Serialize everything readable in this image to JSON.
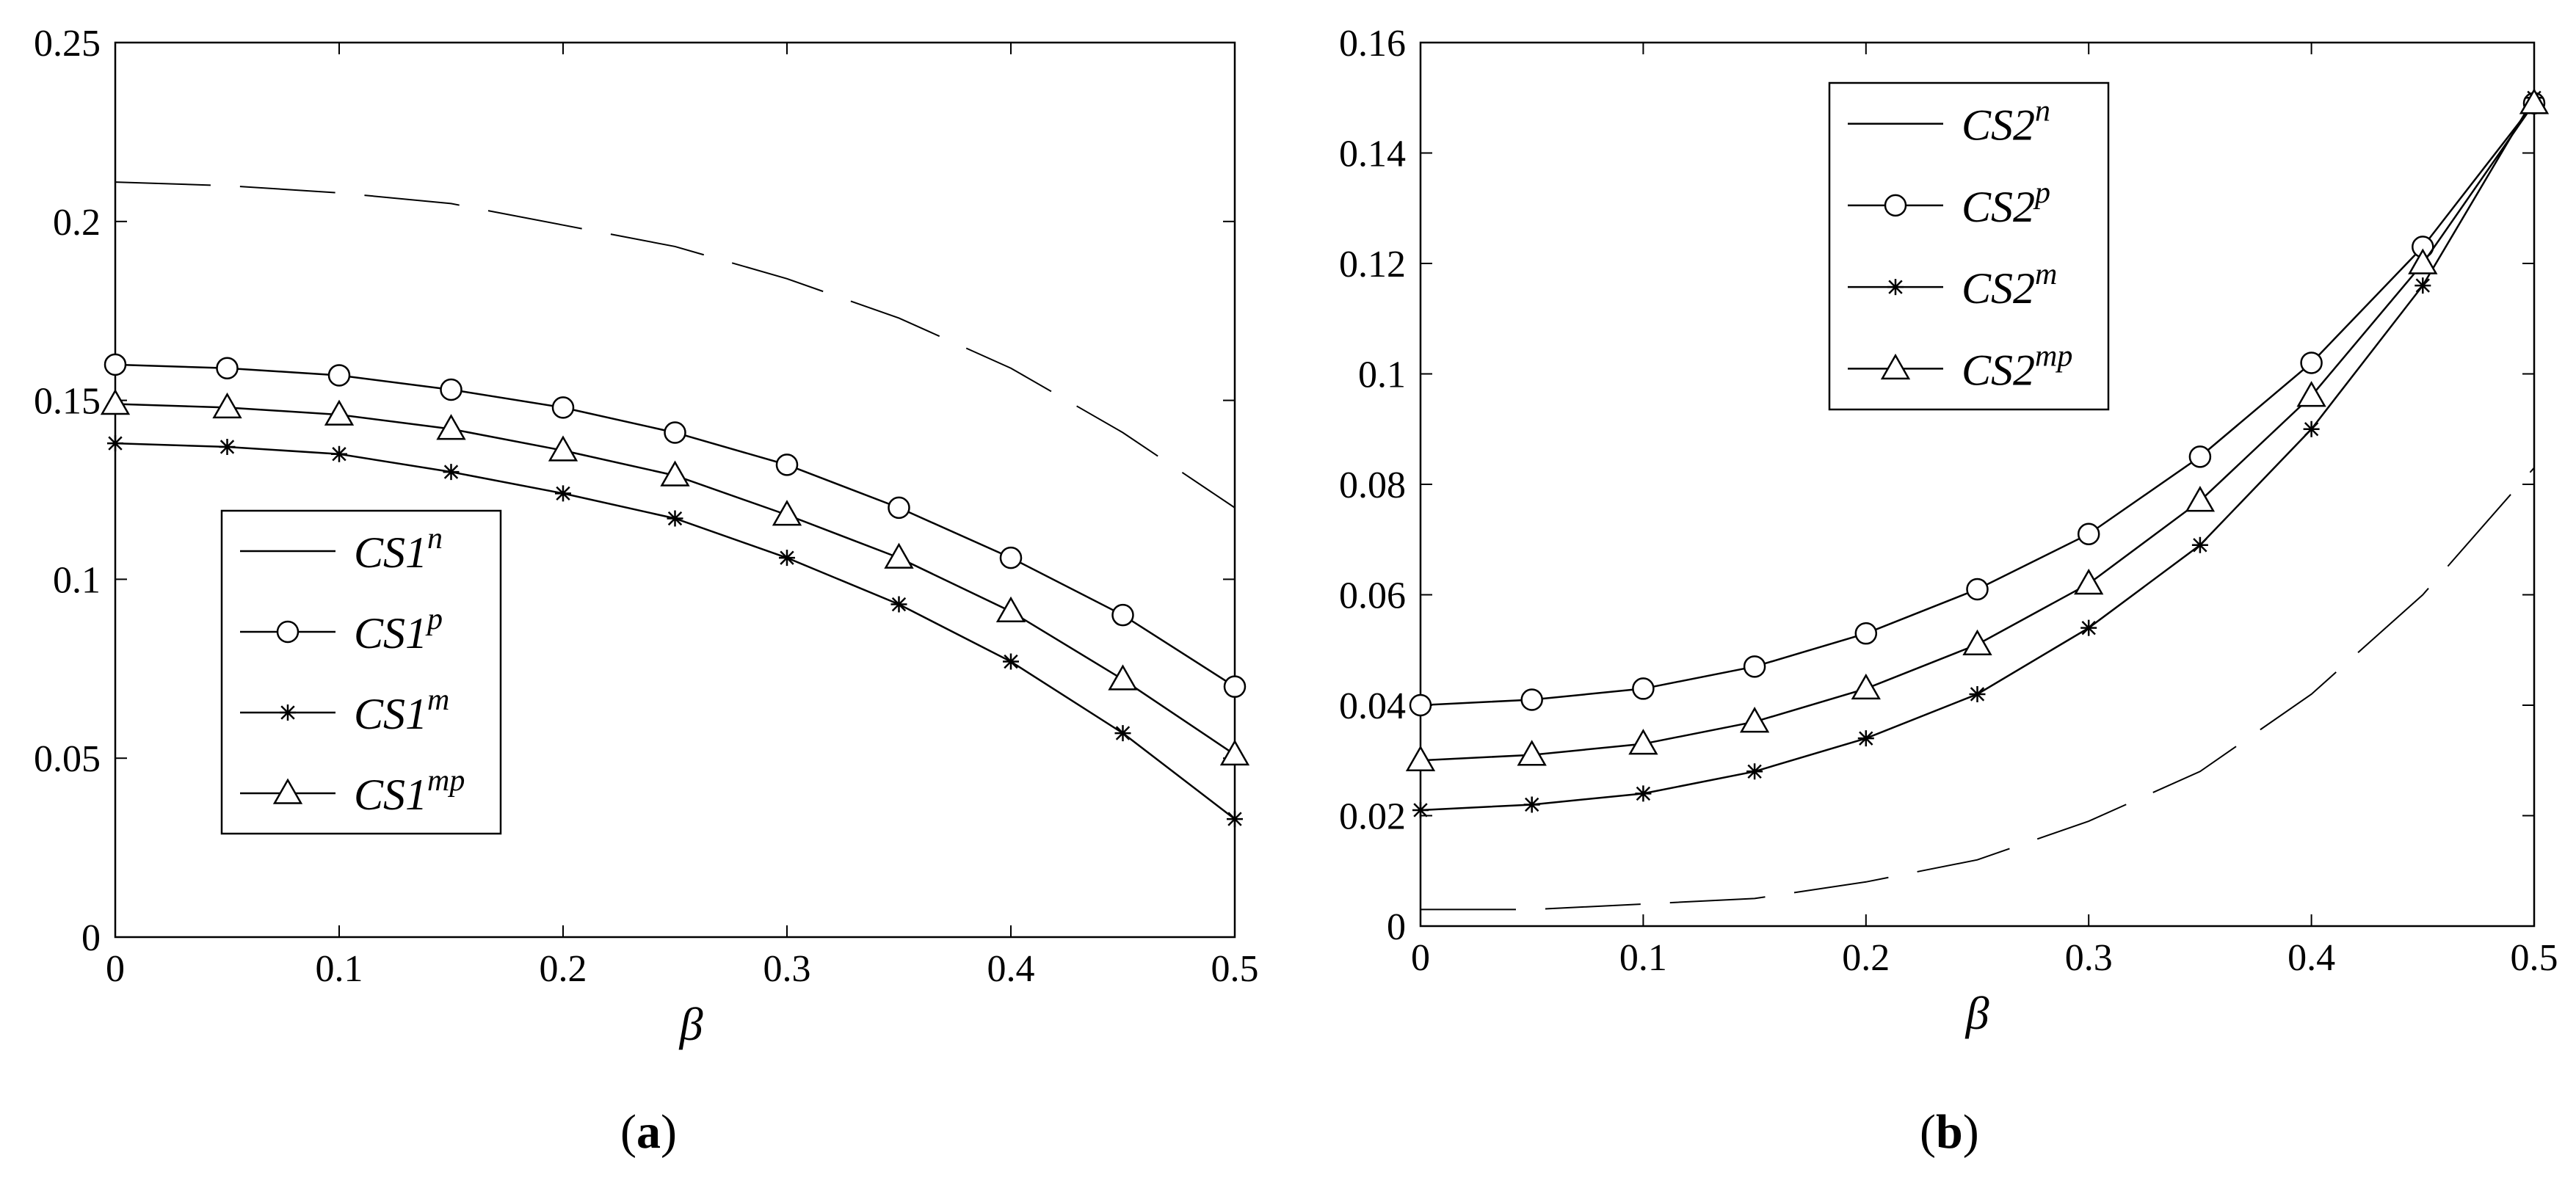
{
  "chart_data": [
    {
      "type": "line",
      "panel_label": "a",
      "xlabel": "β",
      "ylabel": "",
      "xlim": [
        0,
        0.5
      ],
      "ylim": [
        0,
        0.25
      ],
      "x_ticks": [
        "0",
        "0.1",
        "0.2",
        "0.3",
        "0.4",
        "0.5"
      ],
      "y_ticks": [
        "0",
        "0.05",
        "0.1",
        "0.15",
        "0.2",
        "0.25"
      ],
      "x": [
        0,
        0.05,
        0.1,
        0.15,
        0.2,
        0.25,
        0.3,
        0.35,
        0.4,
        0.45,
        0.5
      ],
      "legend_position": "center-left",
      "series": [
        {
          "name": "CS1",
          "sup": "n",
          "marker": "none",
          "dashed": true,
          "values": [
            0.211,
            0.21,
            0.208,
            0.205,
            0.199,
            0.193,
            0.184,
            0.173,
            0.159,
            0.141,
            0.12
          ]
        },
        {
          "name": "CS1",
          "sup": "p",
          "marker": "circle",
          "dashed": false,
          "values": [
            0.16,
            0.159,
            0.157,
            0.153,
            0.148,
            0.141,
            0.132,
            0.12,
            0.106,
            0.09,
            0.07
          ]
        },
        {
          "name": "CS1",
          "sup": "m",
          "marker": "star",
          "dashed": false,
          "values": [
            0.138,
            0.137,
            0.135,
            0.13,
            0.124,
            0.117,
            0.106,
            0.093,
            0.077,
            0.057,
            0.033
          ]
        },
        {
          "name": "CS1",
          "sup": "mp",
          "marker": "triangle",
          "dashed": false,
          "values": [
            0.149,
            0.148,
            0.146,
            0.142,
            0.136,
            0.129,
            0.118,
            0.106,
            0.091,
            0.072,
            0.051
          ]
        }
      ]
    },
    {
      "type": "line",
      "panel_label": "b",
      "xlabel": "β",
      "ylabel": "",
      "xlim": [
        0,
        0.5
      ],
      "ylim": [
        0,
        0.16
      ],
      "x_ticks": [
        "0",
        "0.1",
        "0.2",
        "0.3",
        "0.4",
        "0.5"
      ],
      "y_ticks": [
        "0",
        "0.02",
        "0.04",
        "0.06",
        "0.08",
        "0.1",
        "0.12",
        "0.14",
        "0.16"
      ],
      "x": [
        0,
        0.05,
        0.1,
        0.15,
        0.2,
        0.25,
        0.3,
        0.35,
        0.4,
        0.45,
        0.5
      ],
      "legend_position": "top-center",
      "series": [
        {
          "name": "CS2",
          "sup": "n",
          "marker": "none",
          "dashed": true,
          "values": [
            0.003,
            0.003,
            0.004,
            0.005,
            0.008,
            0.012,
            0.019,
            0.028,
            0.042,
            0.06,
            0.083
          ]
        },
        {
          "name": "CS2",
          "sup": "p",
          "marker": "circle",
          "dashed": false,
          "values": [
            0.04,
            0.041,
            0.043,
            0.047,
            0.053,
            0.061,
            0.071,
            0.085,
            0.102,
            0.123,
            0.149
          ]
        },
        {
          "name": "CS2",
          "sup": "m",
          "marker": "star",
          "dashed": false,
          "values": [
            0.021,
            0.022,
            0.024,
            0.028,
            0.034,
            0.042,
            0.054,
            0.069,
            0.09,
            0.116,
            0.15
          ]
        },
        {
          "name": "CS2",
          "sup": "mp",
          "marker": "triangle",
          "dashed": false,
          "values": [
            0.03,
            0.031,
            0.033,
            0.037,
            0.043,
            0.051,
            0.062,
            0.077,
            0.096,
            0.12,
            0.149
          ]
        }
      ]
    }
  ]
}
